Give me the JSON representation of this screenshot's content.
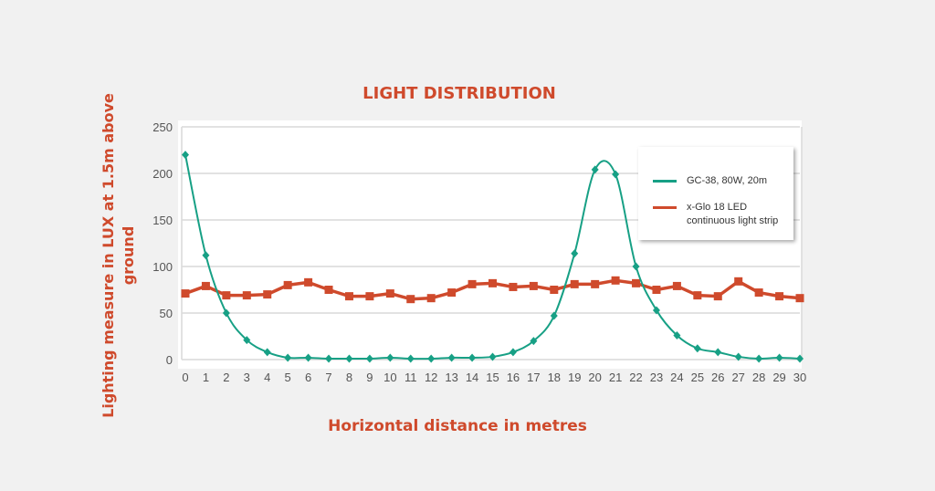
{
  "chart_data": {
    "type": "line",
    "title": "LIGHT DISTRIBUTION",
    "xlabel": "Horizontal distance in metres",
    "ylabel": "Lighting measure in LUX at 1.5m above ground",
    "x": [
      0,
      1,
      2,
      3,
      4,
      5,
      6,
      7,
      8,
      9,
      10,
      11,
      12,
      13,
      14,
      15,
      16,
      17,
      18,
      19,
      20,
      21,
      22,
      23,
      24,
      25,
      26,
      27,
      28,
      29,
      30
    ],
    "ylim": [
      0,
      250
    ],
    "yticks": [
      0,
      50,
      100,
      150,
      200,
      250
    ],
    "grid": true,
    "legend_position": "upper right",
    "series": [
      {
        "name": "GC-38, 80W, 20m",
        "color": "#17a085",
        "marker": "diamond",
        "smooth": true,
        "values": [
          220,
          112,
          50,
          21,
          8,
          2,
          2,
          1,
          1,
          1,
          2,
          1,
          1,
          2,
          2,
          3,
          8,
          20,
          47,
          114,
          204,
          199,
          100,
          53,
          26,
          12,
          8,
          3,
          1,
          2,
          1
        ]
      },
      {
        "name": "x-Glo 18 LED continuous light strip",
        "color": "#cf4a2c",
        "marker": "square",
        "smooth": false,
        "values": [
          71,
          79,
          69,
          69,
          70,
          80,
          83,
          75,
          68,
          68,
          71,
          65,
          66,
          72,
          81,
          82,
          78,
          79,
          75,
          81,
          81,
          85,
          82,
          75,
          79,
          69,
          68,
          84,
          72,
          68,
          66
        ]
      }
    ]
  },
  "legend": {
    "items": [
      {
        "label": "GC-38, 80W, 20m",
        "color": "#17a085"
      },
      {
        "label": "x-Glo 18 LED\ncontinuous light strip",
        "color": "#cf4a2c"
      }
    ]
  }
}
